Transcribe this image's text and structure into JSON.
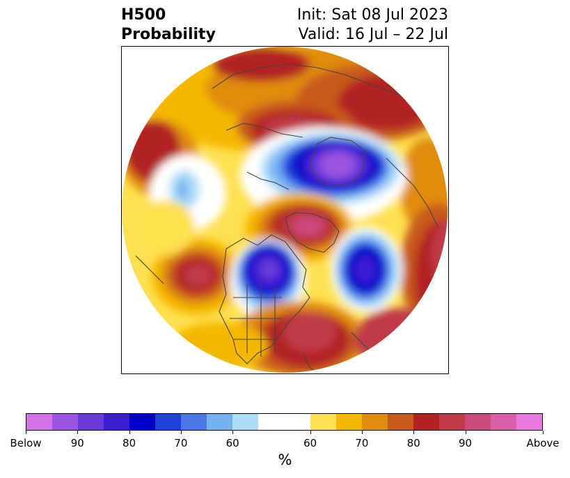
{
  "header": {
    "title_line1": "H500",
    "title_line2": "Probability",
    "init_text": "Init: Sat 08 Jul 2023",
    "valid_text": "Valid: 16 Jul – 22 Jul"
  },
  "colorbar": {
    "unit": "%",
    "colors_below": [
      "#d473e8",
      "#9b55e0",
      "#6a3bd9",
      "#3a1fd3",
      "#0000c8",
      "#2241db",
      "#4a78e9",
      "#74b1f3",
      "#acdcf8"
    ],
    "color_neutral": "#ffffff",
    "colors_above": [
      "#ffe050",
      "#f5b800",
      "#e08c10",
      "#c85a1e",
      "#b22222",
      "#c03a4a",
      "#cc4a7a",
      "#d85fa8",
      "#e879dc"
    ],
    "tick_labels": [
      "Below",
      "90",
      "80",
      "70",
      "60",
      "60",
      "70",
      "80",
      "90",
      "Above"
    ]
  },
  "map": {
    "projection": "north-polar-stereographic",
    "colors": {
      "above_low": "#ffe050",
      "above_mid": "#f5b800",
      "above_high": "#e08c10",
      "above_higher": "#c85a1e",
      "above_strong": "#b22222",
      "above_stronger": "#c03a4a",
      "above_top": "#cc4a7a",
      "below_low": "#acdcf8",
      "below_mid": "#74b1f3",
      "below_high": "#2241db",
      "below_strong": "#0000c8",
      "below_top": "#6a3bd9",
      "below_max": "#9b55e0",
      "coast": "#444444"
    }
  }
}
